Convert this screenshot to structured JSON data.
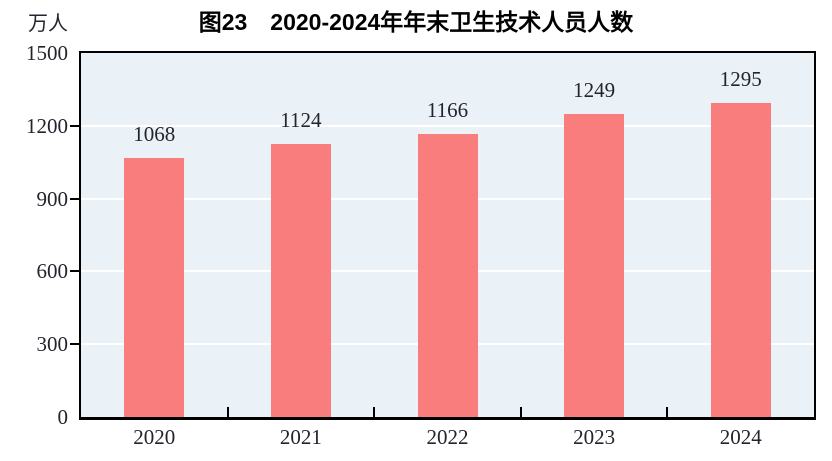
{
  "figure": {
    "title": "图23　2020-2024年年末卫生技术人员人数",
    "y_unit_label": "万人"
  },
  "chart_data": {
    "type": "bar",
    "title": "图23　2020-2024年年末卫生技术人员人数",
    "categories": [
      "2020",
      "2021",
      "2022",
      "2023",
      "2024"
    ],
    "values": [
      1068,
      1124,
      1166,
      1249,
      1295
    ],
    "xlabel": "",
    "ylabel": "万人",
    "ylim": [
      0,
      1500
    ],
    "yticks": [
      0,
      300,
      600,
      900,
      1200,
      1500
    ],
    "grid": true,
    "legend": "none",
    "colors": {
      "bar": "#FA7D7D",
      "plot_bg": "#EBF2F7",
      "gridline": "#FFFFFF",
      "axis": "#000000",
      "label_text": "#24242E",
      "page_bg": "#FFFFFF"
    }
  }
}
